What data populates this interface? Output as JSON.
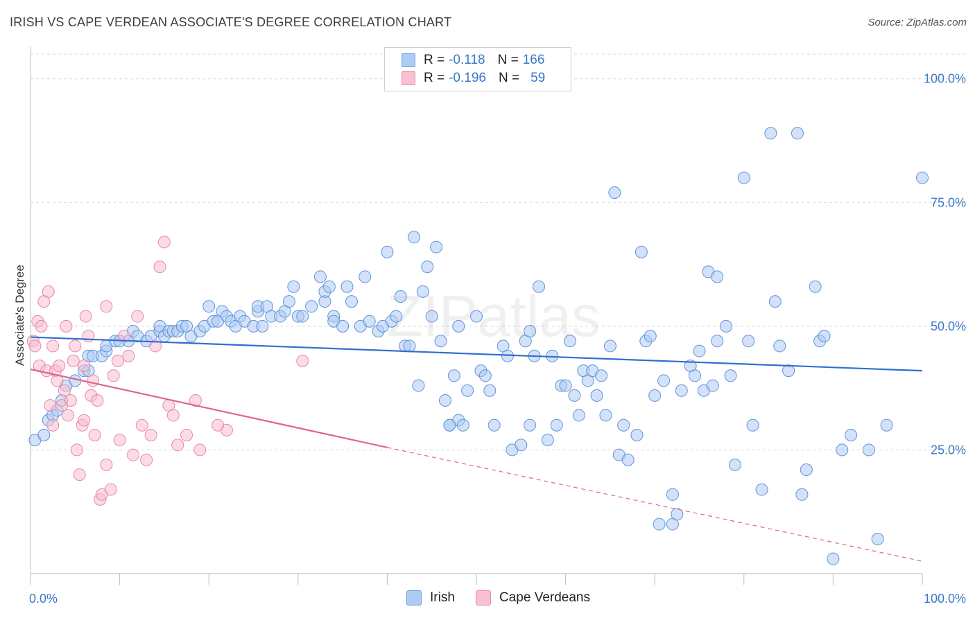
{
  "header": {
    "title": "IRISH VS CAPE VERDEAN ASSOCIATE'S DEGREE CORRELATION CHART",
    "source": "Source: ZipAtlas.com"
  },
  "watermark": "ZIPatlas",
  "legend": {
    "rows": [
      {
        "series": "Irish",
        "r_label": "R =",
        "r_value": "-0.118",
        "n_label": "N =",
        "n_value": "166",
        "color": "#aecbf2",
        "stroke": "#6f9fe0"
      },
      {
        "series": "Cape Verdeans",
        "r_label": "R =",
        "r_value": "-0.196",
        "n_label": "N =",
        "n_value": "59",
        "color": "#f8c0d2",
        "stroke": "#ec8aab"
      }
    ]
  },
  "bottom_legend": [
    {
      "label": "Irish",
      "color": "#aecbf2",
      "stroke": "#6f9fe0"
    },
    {
      "label": "Cape Verdeans",
      "color": "#f8c0d2",
      "stroke": "#ec8aab"
    }
  ],
  "chart_data": {
    "type": "scatter",
    "title": "IRISH VS CAPE VERDEAN ASSOCIATE'S DEGREE CORRELATION CHART",
    "xlabel": "",
    "ylabel": "Associate's Degree",
    "xlim": [
      0,
      100
    ],
    "ylim": [
      0,
      105
    ],
    "x_tick_labels": [
      "0.0%",
      "100.0%"
    ],
    "y_ticks": [
      25,
      50,
      75,
      100
    ],
    "y_tick_labels": [
      "25.0%",
      "50.0%",
      "75.0%",
      "100.0%"
    ],
    "grid": true,
    "series": [
      {
        "name": "Irish",
        "color": "#aecbf2",
        "stroke": "#5f93dc",
        "trend": {
          "x": [
            0,
            100
          ],
          "y": [
            47.8,
            41.0
          ],
          "color": "#2f6fcf"
        },
        "points": [
          [
            0.5,
            27
          ],
          [
            1.5,
            28
          ],
          [
            2,
            31
          ],
          [
            2.5,
            32
          ],
          [
            3,
            33
          ],
          [
            3.5,
            35
          ],
          [
            4,
            38
          ],
          [
            5,
            39
          ],
          [
            6,
            41
          ],
          [
            6.5,
            41
          ],
          [
            6.5,
            44
          ],
          [
            7,
            44
          ],
          [
            8,
            44
          ],
          [
            8.5,
            45
          ],
          [
            8.5,
            46
          ],
          [
            9.5,
            47
          ],
          [
            10,
            47
          ],
          [
            11,
            47
          ],
          [
            11.5,
            49
          ],
          [
            12,
            48
          ],
          [
            13,
            47
          ],
          [
            13.5,
            48
          ],
          [
            14.5,
            49
          ],
          [
            14.5,
            50
          ],
          [
            15,
            48
          ],
          [
            15.5,
            49
          ],
          [
            16,
            49
          ],
          [
            16.5,
            49
          ],
          [
            17,
            50
          ],
          [
            17.5,
            50
          ],
          [
            18,
            48
          ],
          [
            19,
            49
          ],
          [
            19.5,
            50
          ],
          [
            20,
            54
          ],
          [
            20.5,
            51
          ],
          [
            21,
            51
          ],
          [
            21.5,
            53
          ],
          [
            22,
            52
          ],
          [
            22.5,
            51
          ],
          [
            23,
            50
          ],
          [
            23.5,
            52
          ],
          [
            24,
            51
          ],
          [
            25,
            50
          ],
          [
            25.5,
            53
          ],
          [
            25.5,
            54
          ],
          [
            26,
            50
          ],
          [
            26.5,
            54
          ],
          [
            27,
            52
          ],
          [
            28,
            52
          ],
          [
            28.5,
            53
          ],
          [
            29,
            55
          ],
          [
            29.5,
            58
          ],
          [
            30,
            52
          ],
          [
            30.5,
            52
          ],
          [
            31.5,
            54
          ],
          [
            32.5,
            60
          ],
          [
            33,
            55
          ],
          [
            33,
            57
          ],
          [
            33.5,
            58
          ],
          [
            34,
            52
          ],
          [
            34,
            51
          ],
          [
            35,
            50
          ],
          [
            35.5,
            58
          ],
          [
            36,
            55
          ],
          [
            37,
            50
          ],
          [
            37.5,
            60
          ],
          [
            38,
            51
          ],
          [
            39,
            49
          ],
          [
            39.5,
            50
          ],
          [
            40,
            65
          ],
          [
            40.5,
            51
          ],
          [
            41,
            52
          ],
          [
            41.5,
            56
          ],
          [
            42,
            46
          ],
          [
            42.5,
            46
          ],
          [
            43,
            68
          ],
          [
            43.5,
            38
          ],
          [
            44,
            57
          ],
          [
            44.5,
            62
          ],
          [
            45,
            52
          ],
          [
            45.5,
            66
          ],
          [
            46,
            47
          ],
          [
            46.5,
            35
          ],
          [
            47,
            30
          ],
          [
            47.5,
            40
          ],
          [
            48,
            50
          ],
          [
            48,
            31
          ],
          [
            48.5,
            30
          ],
          [
            49,
            37
          ],
          [
            50,
            52
          ],
          [
            50.5,
            41
          ],
          [
            51,
            40
          ],
          [
            51.5,
            37
          ],
          [
            52,
            30
          ],
          [
            53,
            46
          ],
          [
            53.5,
            44
          ],
          [
            54,
            25
          ],
          [
            55,
            26
          ],
          [
            55.5,
            47
          ],
          [
            56,
            49
          ],
          [
            56,
            30
          ],
          [
            56.5,
            44
          ],
          [
            57,
            58
          ],
          [
            58,
            27
          ],
          [
            58.5,
            44
          ],
          [
            59,
            30
          ],
          [
            59.5,
            38
          ],
          [
            60,
            38
          ],
          [
            60.5,
            47
          ],
          [
            61,
            36
          ],
          [
            61.5,
            32
          ],
          [
            62,
            41
          ],
          [
            62.5,
            39
          ],
          [
            63,
            41
          ],
          [
            63.5,
            36
          ],
          [
            64,
            40
          ],
          [
            64.5,
            32
          ],
          [
            65,
            46
          ],
          [
            65.5,
            77
          ],
          [
            66,
            24
          ],
          [
            66.5,
            30
          ],
          [
            67,
            23
          ],
          [
            68,
            28
          ],
          [
            68.5,
            65
          ],
          [
            69,
            47
          ],
          [
            69.5,
            48
          ],
          [
            70,
            36
          ],
          [
            70.5,
            10
          ],
          [
            71,
            39
          ],
          [
            72,
            10
          ],
          [
            72,
            16
          ],
          [
            72.5,
            12
          ],
          [
            73,
            37
          ],
          [
            74,
            42
          ],
          [
            74.5,
            40
          ],
          [
            75,
            45
          ],
          [
            75.5,
            37
          ],
          [
            76,
            61
          ],
          [
            76.5,
            38
          ],
          [
            77,
            60
          ],
          [
            77,
            47
          ],
          [
            78,
            50
          ],
          [
            78.5,
            40
          ],
          [
            79,
            22
          ],
          [
            80,
            80
          ],
          [
            80.5,
            47
          ],
          [
            81,
            30
          ],
          [
            82,
            17
          ],
          [
            83,
            89
          ],
          [
            83.5,
            55
          ],
          [
            84,
            46
          ],
          [
            85,
            41
          ],
          [
            86,
            89
          ],
          [
            86.5,
            16
          ],
          [
            87,
            21
          ],
          [
            88,
            58
          ],
          [
            88.5,
            47
          ],
          [
            89,
            48
          ],
          [
            90,
            3
          ],
          [
            91,
            25
          ],
          [
            92,
            28
          ],
          [
            94,
            25
          ],
          [
            95,
            7
          ],
          [
            96,
            30
          ],
          [
            100,
            80
          ],
          [
            47,
            30
          ]
        ]
      },
      {
        "name": "Cape Verdeans",
        "color": "#f8c0d2",
        "stroke": "#ea86a8",
        "trend": {
          "x": [
            0,
            40
          ],
          "y": [
            41.3,
            25.5
          ],
          "color": "#e0648f",
          "dash_to": [
            100,
            2.5
          ]
        },
        "points": [
          [
            0.3,
            47
          ],
          [
            0.5,
            46
          ],
          [
            0.8,
            51
          ],
          [
            1,
            42
          ],
          [
            1.2,
            50
          ],
          [
            1.5,
            55
          ],
          [
            1.8,
            41
          ],
          [
            2,
            57
          ],
          [
            2.2,
            34
          ],
          [
            2.5,
            30
          ],
          [
            2.5,
            46
          ],
          [
            2.8,
            41
          ],
          [
            3,
            39
          ],
          [
            3.2,
            42
          ],
          [
            3.5,
            34
          ],
          [
            3.8,
            37
          ],
          [
            4,
            50
          ],
          [
            4.2,
            32
          ],
          [
            4.5,
            35
          ],
          [
            4.8,
            43
          ],
          [
            5,
            46
          ],
          [
            5.2,
            25
          ],
          [
            5.5,
            20
          ],
          [
            5.8,
            30
          ],
          [
            6,
            31
          ],
          [
            6.2,
            52
          ],
          [
            6.5,
            48
          ],
          [
            6.8,
            36
          ],
          [
            7,
            39
          ],
          [
            7.2,
            28
          ],
          [
            7.5,
            35
          ],
          [
            7.8,
            15
          ],
          [
            8,
            16
          ],
          [
            8.5,
            22
          ],
          [
            9,
            17
          ],
          [
            9.3,
            40
          ],
          [
            9.8,
            43
          ],
          [
            10,
            27
          ],
          [
            10.5,
            48
          ],
          [
            11,
            44
          ],
          [
            11.5,
            24
          ],
          [
            12,
            52
          ],
          [
            12.5,
            30
          ],
          [
            13,
            23
          ],
          [
            13.5,
            28
          ],
          [
            14,
            46
          ],
          [
            14.5,
            62
          ],
          [
            15,
            67
          ],
          [
            15.5,
            34
          ],
          [
            16,
            32
          ],
          [
            16.5,
            26
          ],
          [
            17.5,
            28
          ],
          [
            18.5,
            35
          ],
          [
            19,
            25
          ],
          [
            22,
            29
          ],
          [
            21,
            30
          ],
          [
            30.5,
            43
          ],
          [
            8.5,
            54
          ],
          [
            6,
            42
          ]
        ]
      }
    ]
  }
}
